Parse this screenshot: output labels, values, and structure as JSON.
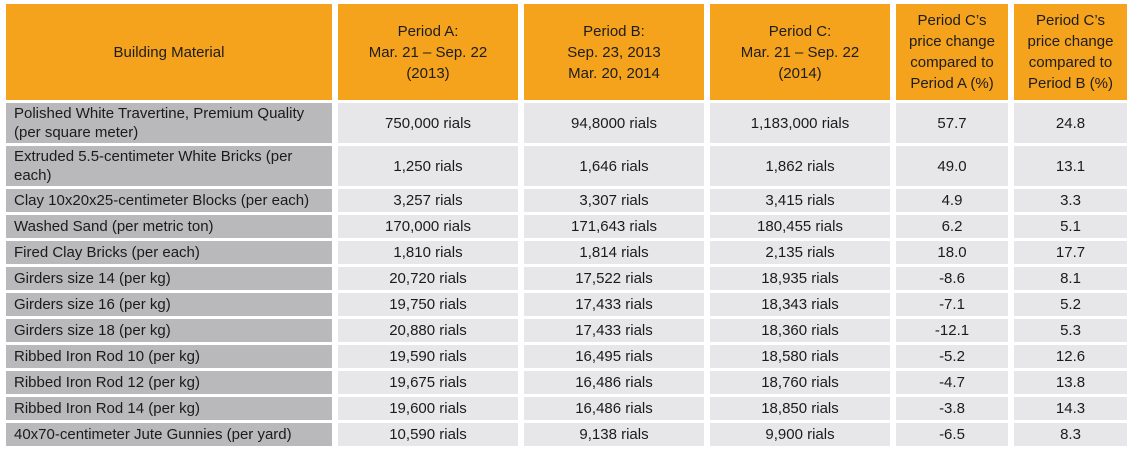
{
  "colors": {
    "header_bg": "#F5A21C",
    "material_cell_bg": "#B9B9BC",
    "value_cell_bg": "#E7E7E9",
    "gap": "#FFFFFF",
    "text": "#1B1B1B"
  },
  "chart_data": {
    "type": "table",
    "columns": [
      {
        "key": "material",
        "label": "Building Material"
      },
      {
        "key": "period-a",
        "label": "Period A:\nMar. 21 – Sep. 22\n(2013)"
      },
      {
        "key": "period-b",
        "label": "Period B:\nSep. 23, 2013\nMar. 20, 2014"
      },
      {
        "key": "period-c",
        "label": "Period C:\nMar. 21 – Sep. 22\n(2014)"
      },
      {
        "key": "change-vs-a",
        "label": "Period C’s\nprice change\ncompared to\nPeriod A (%)"
      },
      {
        "key": "change-vs-b",
        "label": "Period C’s\nprice change\ncompared to\nPeriod B (%)"
      }
    ],
    "rows": [
      [
        "Polished White Travertine, Premium Quality (per square meter)",
        "750,000 rials",
        "94,8000 rials",
        "1,183,000 rials",
        "57.7",
        "24.8"
      ],
      [
        "Extruded 5.5-centimeter White Bricks (per each)",
        "1,250 rials",
        "1,646 rials",
        "1,862 rials",
        "49.0",
        "13.1"
      ],
      [
        "Clay 10x20x25-centimeter Blocks (per each)",
        "3,257 rials",
        "3,307 rials",
        "3,415 rials",
        "4.9",
        "3.3"
      ],
      [
        "Washed Sand (per metric ton)",
        "170,000 rials",
        "171,643 rials",
        "180,455 rials",
        "6.2",
        "5.1"
      ],
      [
        "Fired Clay Bricks (per each)",
        "1,810 rials",
        "1,814 rials",
        "2,135 rials",
        "18.0",
        "17.7"
      ],
      [
        "Girders size 14 (per kg)",
        "20,720 rials",
        "17,522 rials",
        "18,935 rials",
        "-8.6",
        "8.1"
      ],
      [
        "Girders size 16 (per kg)",
        "19,750 rials",
        "17,433 rials",
        "18,343 rials",
        "-7.1",
        "5.2"
      ],
      [
        "Girders size 18 (per kg)",
        "20,880 rials",
        "17,433 rials",
        "18,360 rials",
        "-12.1",
        "5.3"
      ],
      [
        "Ribbed Iron Rod 10 (per kg)",
        "19,590 rials",
        "16,495 rials",
        "18,580 rials",
        "-5.2",
        "12.6"
      ],
      [
        "Ribbed Iron Rod 12 (per kg)",
        "19,675 rials",
        "16,486 rials",
        "18,760 rials",
        "-4.7",
        "13.8"
      ],
      [
        "Ribbed Iron Rod 14 (per kg)",
        "19,600 rials",
        "16,486 rials",
        "18,850 rials",
        "-3.8",
        "14.3"
      ],
      [
        "40x70-centimeter Jute Gunnies (per yard)",
        "10,590 rials",
        "9,138 rials",
        "9,900 rials",
        "-6.5",
        "8.3"
      ]
    ]
  }
}
